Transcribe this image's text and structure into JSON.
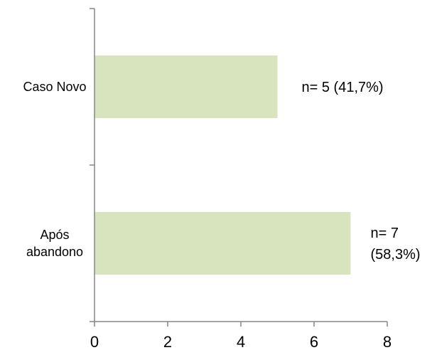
{
  "chart_data": {
    "type": "bar",
    "orientation": "horizontal",
    "categories": [
      "Caso Novo",
      "Após abandono"
    ],
    "category_label_lines": [
      [
        "Caso Novo"
      ],
      [
        "Após",
        "abandono"
      ]
    ],
    "values": [
      5,
      7
    ],
    "data_labels": [
      [
        "n= 5 (41,7%)"
      ],
      [
        "n= 7",
        "(58,3%)"
      ]
    ],
    "xlim": [
      0,
      8
    ],
    "xticks": [
      0,
      2,
      4,
      6,
      8
    ],
    "title": "",
    "xlabel": "",
    "ylabel": "",
    "grid": false,
    "legend": "none",
    "bar_color": "#d7e4bd",
    "axis_color": "#868686"
  }
}
